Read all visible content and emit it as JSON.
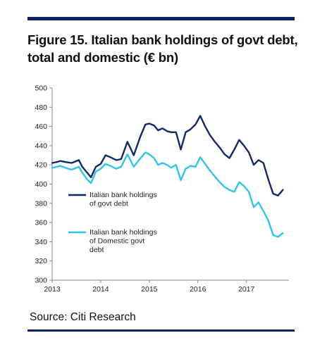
{
  "title_line1": "Figure 15. Italian bank holdings of govt debt,",
  "title_line2": "total and domestic (€ bn)",
  "source": "Source: Citi Research",
  "colors": {
    "rule": "#0b2265",
    "series_total": "#0f2a6b",
    "series_domestic": "#2ec4ee",
    "axis": "#888888"
  },
  "chart_data": {
    "type": "line",
    "title": "Figure 15. Italian bank holdings of govt debt, total and domestic (€ bn)",
    "xlabel": "",
    "ylabel": "",
    "ylim": [
      300,
      500
    ],
    "y_ticks": [
      300,
      320,
      340,
      360,
      380,
      400,
      420,
      440,
      460,
      480,
      500
    ],
    "xlim": [
      2013.0,
      2017.875
    ],
    "x_ticks": [
      "2013",
      "2014",
      "2015",
      "2016",
      "2017"
    ],
    "grid": false,
    "legend_position": "lower-left inside plot",
    "series": [
      {
        "name": "Italian bank holdings of govt debt",
        "legend_lines": [
          "Italian bank holdings",
          "of govt debt"
        ],
        "color": "#0f2a6b",
        "x": [
          2013.0,
          2013.1,
          2013.17,
          2013.27,
          2013.4,
          2013.55,
          2013.62,
          2013.72,
          2013.8,
          2013.9,
          2014.0,
          2014.1,
          2014.2,
          2014.32,
          2014.42,
          2014.55,
          2014.68,
          2014.82,
          2014.92,
          2015.0,
          2015.1,
          2015.18,
          2015.27,
          2015.37,
          2015.45,
          2015.55,
          2015.65,
          2015.75,
          2015.85,
          2015.95,
          2016.05,
          2016.15,
          2016.25,
          2016.35,
          2016.45,
          2016.55,
          2016.65,
          2016.75,
          2016.85,
          2016.95,
          2017.05,
          2017.15,
          2017.25,
          2017.35,
          2017.45,
          2017.55,
          2017.65,
          2017.75
        ],
        "values": [
          422,
          423,
          424,
          423,
          422,
          425,
          418,
          412,
          407,
          418,
          421,
          430,
          428,
          425,
          426,
          444,
          430,
          450,
          462,
          463,
          461,
          456,
          458,
          455,
          454,
          454,
          436,
          454,
          457,
          462,
          471,
          460,
          451,
          444,
          438,
          431,
          427,
          436,
          446,
          440,
          433,
          420,
          425,
          422,
          405,
          390,
          388,
          394
        ]
      },
      {
        "name": "Italian bank holdings of Domestic govt debt",
        "legend_lines": [
          "Italian bank holdings",
          "of Domestic govt",
          "debt"
        ],
        "color": "#2ec4ee",
        "x": [
          2013.0,
          2013.1,
          2013.17,
          2013.27,
          2013.4,
          2013.55,
          2013.62,
          2013.72,
          2013.8,
          2013.9,
          2014.0,
          2014.1,
          2014.2,
          2014.32,
          2014.42,
          2014.55,
          2014.68,
          2014.82,
          2014.92,
          2015.0,
          2015.1,
          2015.18,
          2015.27,
          2015.37,
          2015.45,
          2015.55,
          2015.65,
          2015.75,
          2015.85,
          2015.95,
          2016.05,
          2016.15,
          2016.25,
          2016.35,
          2016.45,
          2016.55,
          2016.65,
          2016.75,
          2016.85,
          2016.95,
          2017.05,
          2017.15,
          2017.25,
          2017.35,
          2017.45,
          2017.55,
          2017.65,
          2017.75
        ],
        "values": [
          417,
          418,
          419,
          417,
          415,
          418,
          412,
          405,
          401,
          413,
          416,
          421,
          419,
          416,
          418,
          431,
          418,
          427,
          433,
          431,
          427,
          420,
          422,
          420,
          417,
          420,
          404,
          416,
          419,
          418,
          428,
          421,
          414,
          408,
          402,
          397,
          394,
          392,
          402,
          398,
          392,
          376,
          381,
          372,
          362,
          347,
          345,
          349
        ]
      }
    ]
  }
}
